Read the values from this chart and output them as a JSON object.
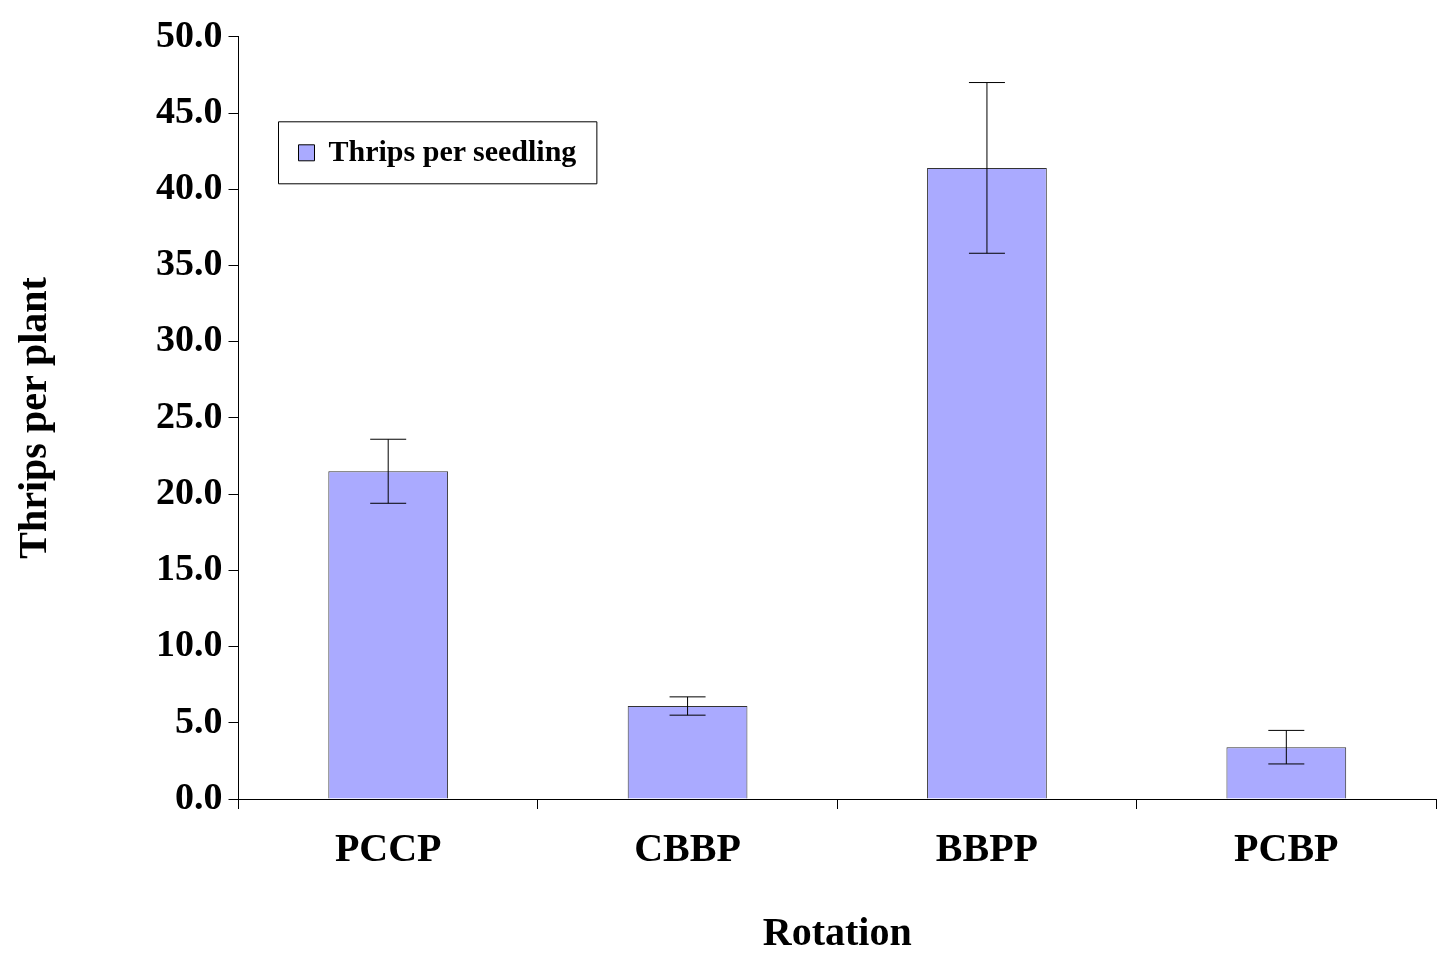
{
  "chart_data": {
    "type": "bar",
    "xlabel": "Rotation",
    "ylabel": "Thrips per plant",
    "categories": [
      "PCCP",
      "CBBP",
      "BBPP",
      "PCBP"
    ],
    "series": [
      {
        "name": "Thrips per seedling",
        "color": "#aaaaff",
        "values": [
          21.5,
          6.1,
          41.4,
          3.4
        ],
        "errors": [
          2.1,
          0.6,
          5.6,
          1.1
        ]
      }
    ],
    "ylim": [
      0,
      50
    ],
    "yticks": [
      {
        "value": 0,
        "label": "0.0"
      },
      {
        "value": 5,
        "label": "5.0"
      },
      {
        "value": 10,
        "label": "10.0"
      },
      {
        "value": 15,
        "label": "15.0"
      },
      {
        "value": 20,
        "label": "20.0"
      },
      {
        "value": 25,
        "label": "25.0"
      },
      {
        "value": 30,
        "label": "30.0"
      },
      {
        "value": 35,
        "label": "35.0"
      },
      {
        "value": 40,
        "label": "40.0"
      },
      {
        "value": 45,
        "label": "45.0"
      },
      {
        "value": 50,
        "label": "50.0"
      }
    ],
    "grid": false,
    "legend": "top left"
  }
}
